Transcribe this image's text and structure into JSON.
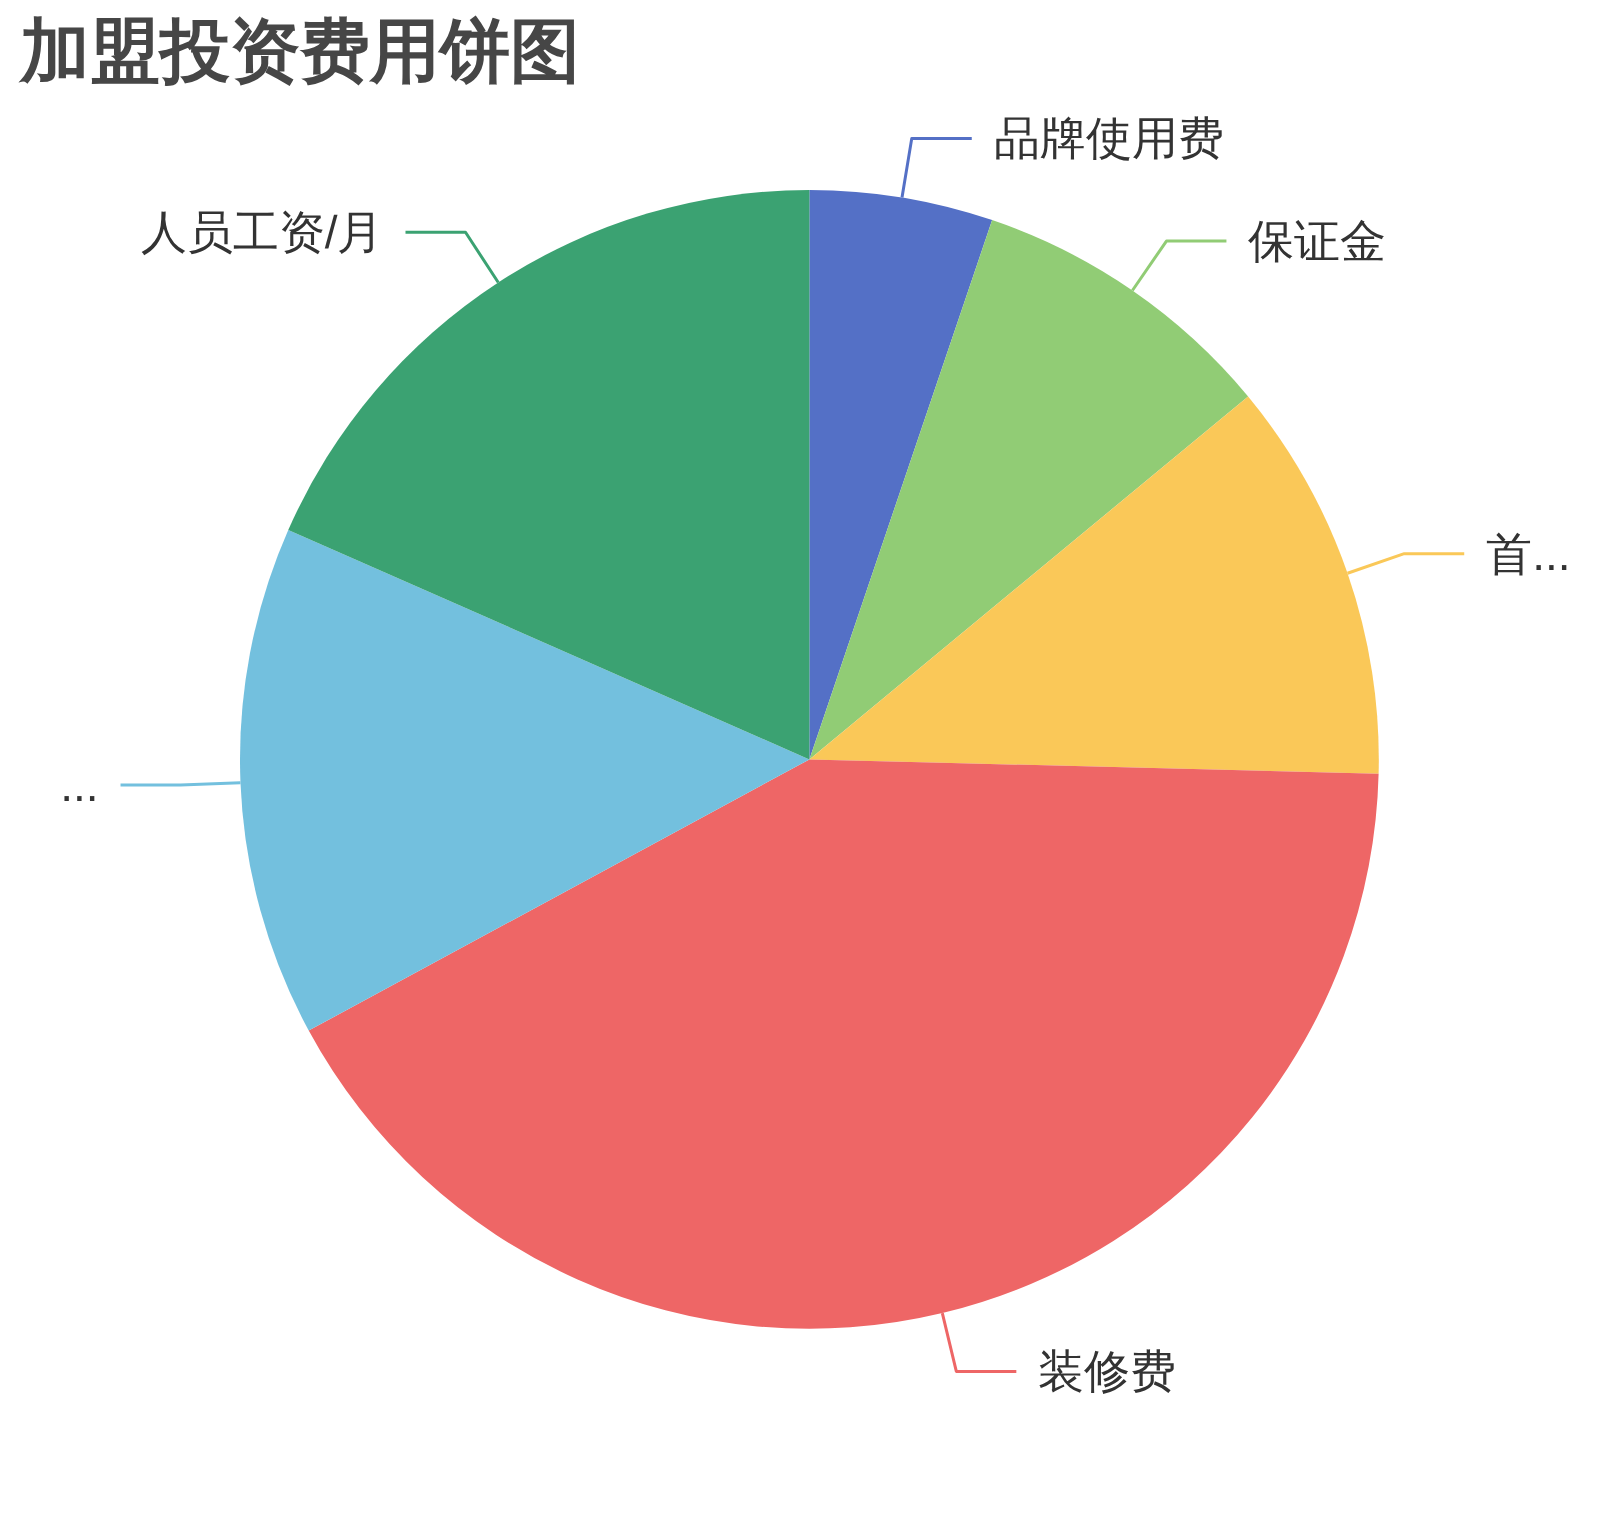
{
  "chart_data": {
    "type": "pie",
    "title": "加盟投资费用饼图",
    "categories": [
      "品牌使用费",
      "保证金",
      "首...",
      "装修费",
      "...",
      "人员工资/月"
    ],
    "values": [
      5.2,
      8.8,
      11.4,
      41.7,
      14.5,
      18.4
    ],
    "colors": [
      "#5470c6",
      "#91cc75",
      "#fac858",
      "#ee6666",
      "#73c0de",
      "#3ba272"
    ]
  }
}
